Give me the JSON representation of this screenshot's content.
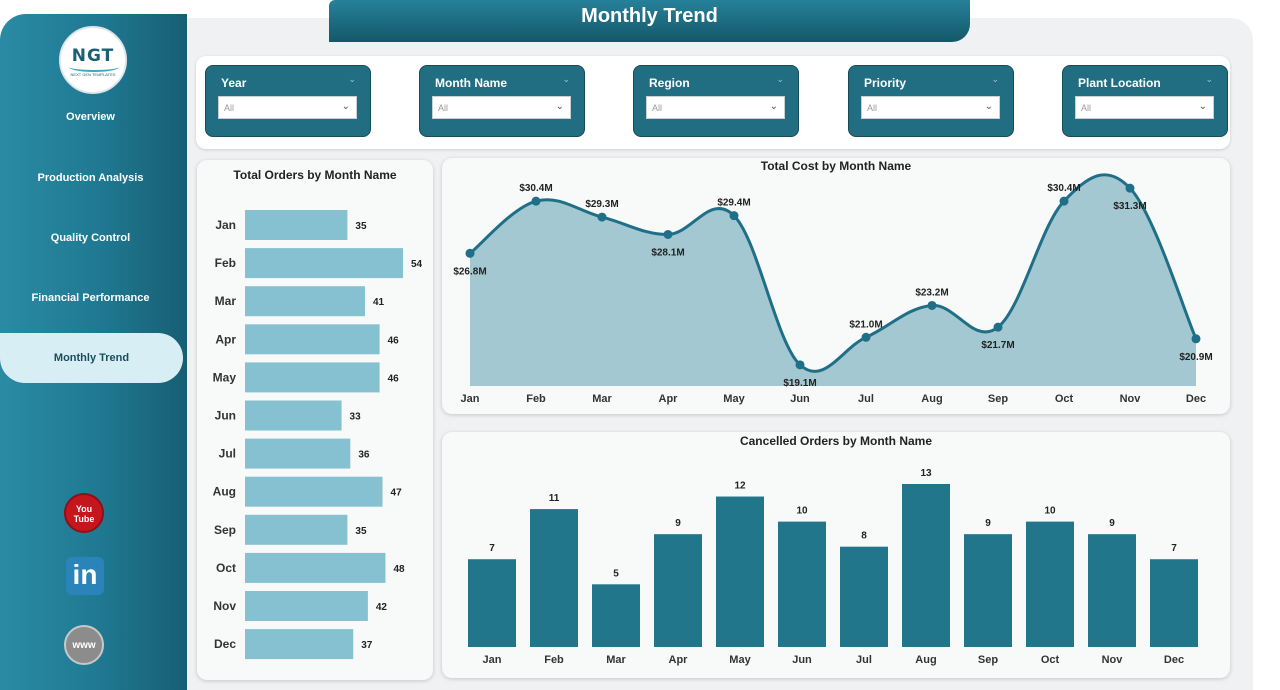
{
  "sidebar": {
    "logo_text": "NGT",
    "logo_subtext": "NEXT GEN TEMPLATES",
    "nav": [
      {
        "label": "Overview"
      },
      {
        "label": "Production Analysis"
      },
      {
        "label": "Quality Control"
      },
      {
        "label": "Financial Performance"
      },
      {
        "label": "Monthly Trend",
        "active": true
      }
    ],
    "social": {
      "youtube_label": "You Tube",
      "linkedin_label": "in",
      "web_label": "www"
    }
  },
  "header": {
    "title": "Monthly Trend"
  },
  "filters": [
    {
      "label": "Year",
      "value": "All"
    },
    {
      "label": "Month Name",
      "value": "All"
    },
    {
      "label": "Region",
      "value": "All"
    },
    {
      "label": "Priority",
      "value": "All"
    },
    {
      "label": "Plant Location",
      "value": "All"
    }
  ],
  "chart_data": [
    {
      "type": "bar",
      "orientation": "horizontal",
      "title": "Total Orders by Month Name",
      "categories": [
        "Jan",
        "Feb",
        "Mar",
        "Apr",
        "May",
        "Jun",
        "Jul",
        "Aug",
        "Sep",
        "Oct",
        "Nov",
        "Dec"
      ],
      "values": [
        35,
        54,
        41,
        46,
        46,
        33,
        36,
        47,
        35,
        48,
        42,
        37
      ],
      "labels": [
        "35",
        "54",
        "41",
        "46",
        "46",
        "33",
        "36",
        "47",
        "35",
        "48",
        "42",
        "37"
      ],
      "color": "#86c1d1",
      "xlim": [
        0,
        54
      ]
    },
    {
      "type": "area",
      "title": "Total Cost by Month Name",
      "categories": [
        "Jan",
        "Feb",
        "Mar",
        "Apr",
        "May",
        "Jun",
        "Jul",
        "Aug",
        "Sep",
        "Oct",
        "Nov",
        "Dec"
      ],
      "values": [
        26.8,
        30.4,
        29.3,
        28.1,
        29.4,
        19.1,
        21.0,
        23.2,
        21.7,
        30.4,
        31.3,
        20.9
      ],
      "labels": [
        "$26.8M",
        "$30.4M",
        "$29.3M",
        "$28.1M",
        "$29.4M",
        "$19.1M",
        "$21.0M",
        "$23.2M",
        "$21.7M",
        "$30.4M",
        "$31.3M",
        "$20.9M"
      ],
      "unit": "$M",
      "ylim": [
        17.5,
        32
      ],
      "line_color": "#1e6f87",
      "fill_color": "#9ec5d0"
    },
    {
      "type": "bar",
      "title": "Cancelled Orders by Month Name",
      "categories": [
        "Jan",
        "Feb",
        "Mar",
        "Apr",
        "May",
        "Jun",
        "Jul",
        "Aug",
        "Sep",
        "Oct",
        "Nov",
        "Dec"
      ],
      "values": [
        7,
        11,
        5,
        9,
        12,
        10,
        8,
        13,
        9,
        10,
        9,
        7
      ],
      "labels": [
        "7",
        "11",
        "5",
        "9",
        "12",
        "10",
        "8",
        "13",
        "9",
        "10",
        "9",
        "7"
      ],
      "color": "#21768b",
      "ylim": [
        0,
        13
      ]
    }
  ]
}
